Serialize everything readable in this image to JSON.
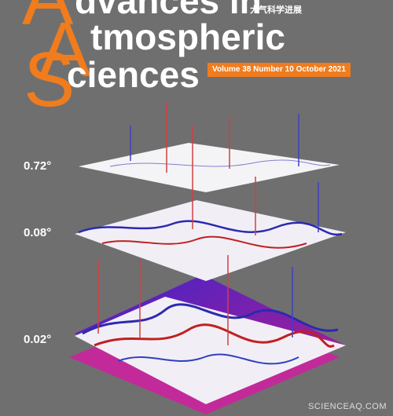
{
  "title": {
    "lines": [
      {
        "initial": "A",
        "rest": "dvances in"
      },
      {
        "initial": "A",
        "rest": "tmospheric"
      },
      {
        "initial": "S",
        "rest": "ciences"
      }
    ],
    "chinese": "大气科学进展"
  },
  "issue": "Volume 38 Number 10 October 2021",
  "layers": [
    "0.72°",
    "0.08°",
    "0.02°"
  ],
  "watermark": "SCIENCEAQ.COM"
}
